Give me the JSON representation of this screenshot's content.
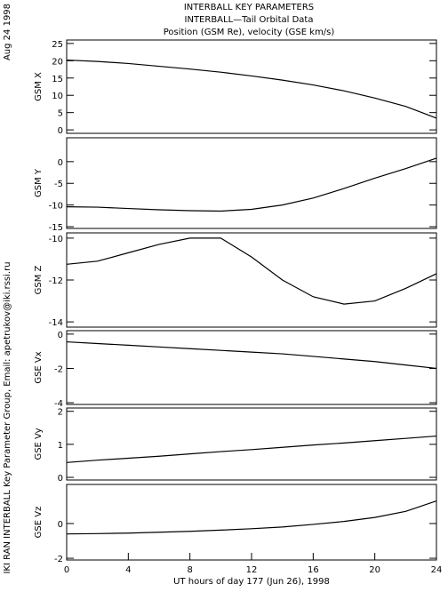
{
  "header": {
    "title": [
      "INTERBALL KEY PARAMETERS",
      "INTERBALL—Tail Orbital Data",
      "Position (GSM Re), velocity (GSE km/s)"
    ],
    "date": "Aug 24 1998",
    "credit": "IKI RAN INTERBALL Key Parameter Group, Email: apetrukov@iki.rssi.ru"
  },
  "chart_data": [
    {
      "type": "line",
      "ylabel": "GSM X",
      "x": [
        0,
        2,
        4,
        6,
        8,
        10,
        12,
        14,
        16,
        18,
        20,
        22,
        24
      ],
      "xlim": [
        0,
        24
      ],
      "values": [
        20.2,
        19.8,
        19.2,
        18.4,
        17.6,
        16.7,
        15.6,
        14.4,
        13.0,
        11.3,
        9.2,
        6.8,
        3.4
      ],
      "color": "#000000",
      "ylim": [
        -1,
        26
      ],
      "yticks": [
        0,
        5,
        10,
        15,
        20,
        25
      ]
    },
    {
      "type": "line",
      "ylabel": "GSM Y",
      "x": [
        0,
        2,
        4,
        6,
        8,
        10,
        12,
        14,
        16,
        18,
        20,
        22,
        24
      ],
      "xlim": [
        0,
        24
      ],
      "values": [
        -10.4,
        -10.5,
        -10.8,
        -11.1,
        -11.3,
        -11.4,
        -11.0,
        -10.0,
        -8.4,
        -6.2,
        -3.8,
        -1.6,
        0.8
      ],
      "color": "#000000",
      "ylim": [
        -15.4,
        5.5
      ],
      "yticks": [
        -15,
        -10,
        -5,
        0
      ]
    },
    {
      "type": "line",
      "ylabel": "GSM Z",
      "x": [
        0,
        2,
        4,
        6,
        8,
        10,
        12,
        14,
        16,
        18,
        20,
        22,
        24
      ],
      "xlim": [
        0,
        24
      ],
      "values": [
        -11.25,
        -11.1,
        -10.7,
        -10.3,
        -10.0,
        -10.0,
        -10.9,
        -12.0,
        -12.8,
        -13.15,
        -13.0,
        -12.4,
        -11.7
      ],
      "color": "#000000",
      "ylim": [
        -14.25,
        -9.75
      ],
      "yticks": [
        -14,
        -12,
        -10
      ]
    },
    {
      "type": "line",
      "ylabel": "GSE Vx",
      "x": [
        0,
        2,
        4,
        6,
        8,
        10,
        12,
        14,
        16,
        18,
        20,
        22,
        24
      ],
      "xlim": [
        0,
        24
      ],
      "values": [
        -0.45,
        -0.55,
        -0.65,
        -0.75,
        -0.85,
        -0.95,
        -1.05,
        -1.15,
        -1.3,
        -1.45,
        -1.6,
        -1.8,
        -2.0
      ],
      "color": "#000000",
      "ylim": [
        -4.1,
        0.2
      ],
      "yticks": [
        -4,
        -2,
        0
      ]
    },
    {
      "type": "line",
      "ylabel": "GSE Vy",
      "x": [
        0,
        2,
        4,
        6,
        8,
        10,
        12,
        14,
        16,
        18,
        20,
        22,
        24
      ],
      "xlim": [
        0,
        24
      ],
      "values": [
        0.45,
        0.52,
        0.58,
        0.64,
        0.71,
        0.78,
        0.84,
        0.91,
        0.98,
        1.04,
        1.11,
        1.18,
        1.25
      ],
      "color": "#000000",
      "ylim": [
        -0.08,
        2.1
      ],
      "yticks": [
        0,
        1,
        2
      ]
    },
    {
      "type": "line",
      "ylabel": "GSE Vz",
      "x": [
        0,
        2,
        4,
        6,
        8,
        10,
        12,
        14,
        16,
        18,
        20,
        22,
        24
      ],
      "xlim": [
        0,
        24
      ],
      "values": [
        -0.6,
        -0.58,
        -0.55,
        -0.5,
        -0.45,
        -0.38,
        -0.3,
        -0.2,
        -0.05,
        0.12,
        0.35,
        0.7,
        1.3
      ],
      "color": "#000000",
      "ylim": [
        -2.1,
        2.25
      ],
      "yticks": [
        -2,
        0
      ],
      "xticks": [
        0,
        4,
        8,
        12,
        16,
        20,
        24
      ],
      "xlabel": "UT hours of day 177 (Jun 26), 1998"
    }
  ]
}
